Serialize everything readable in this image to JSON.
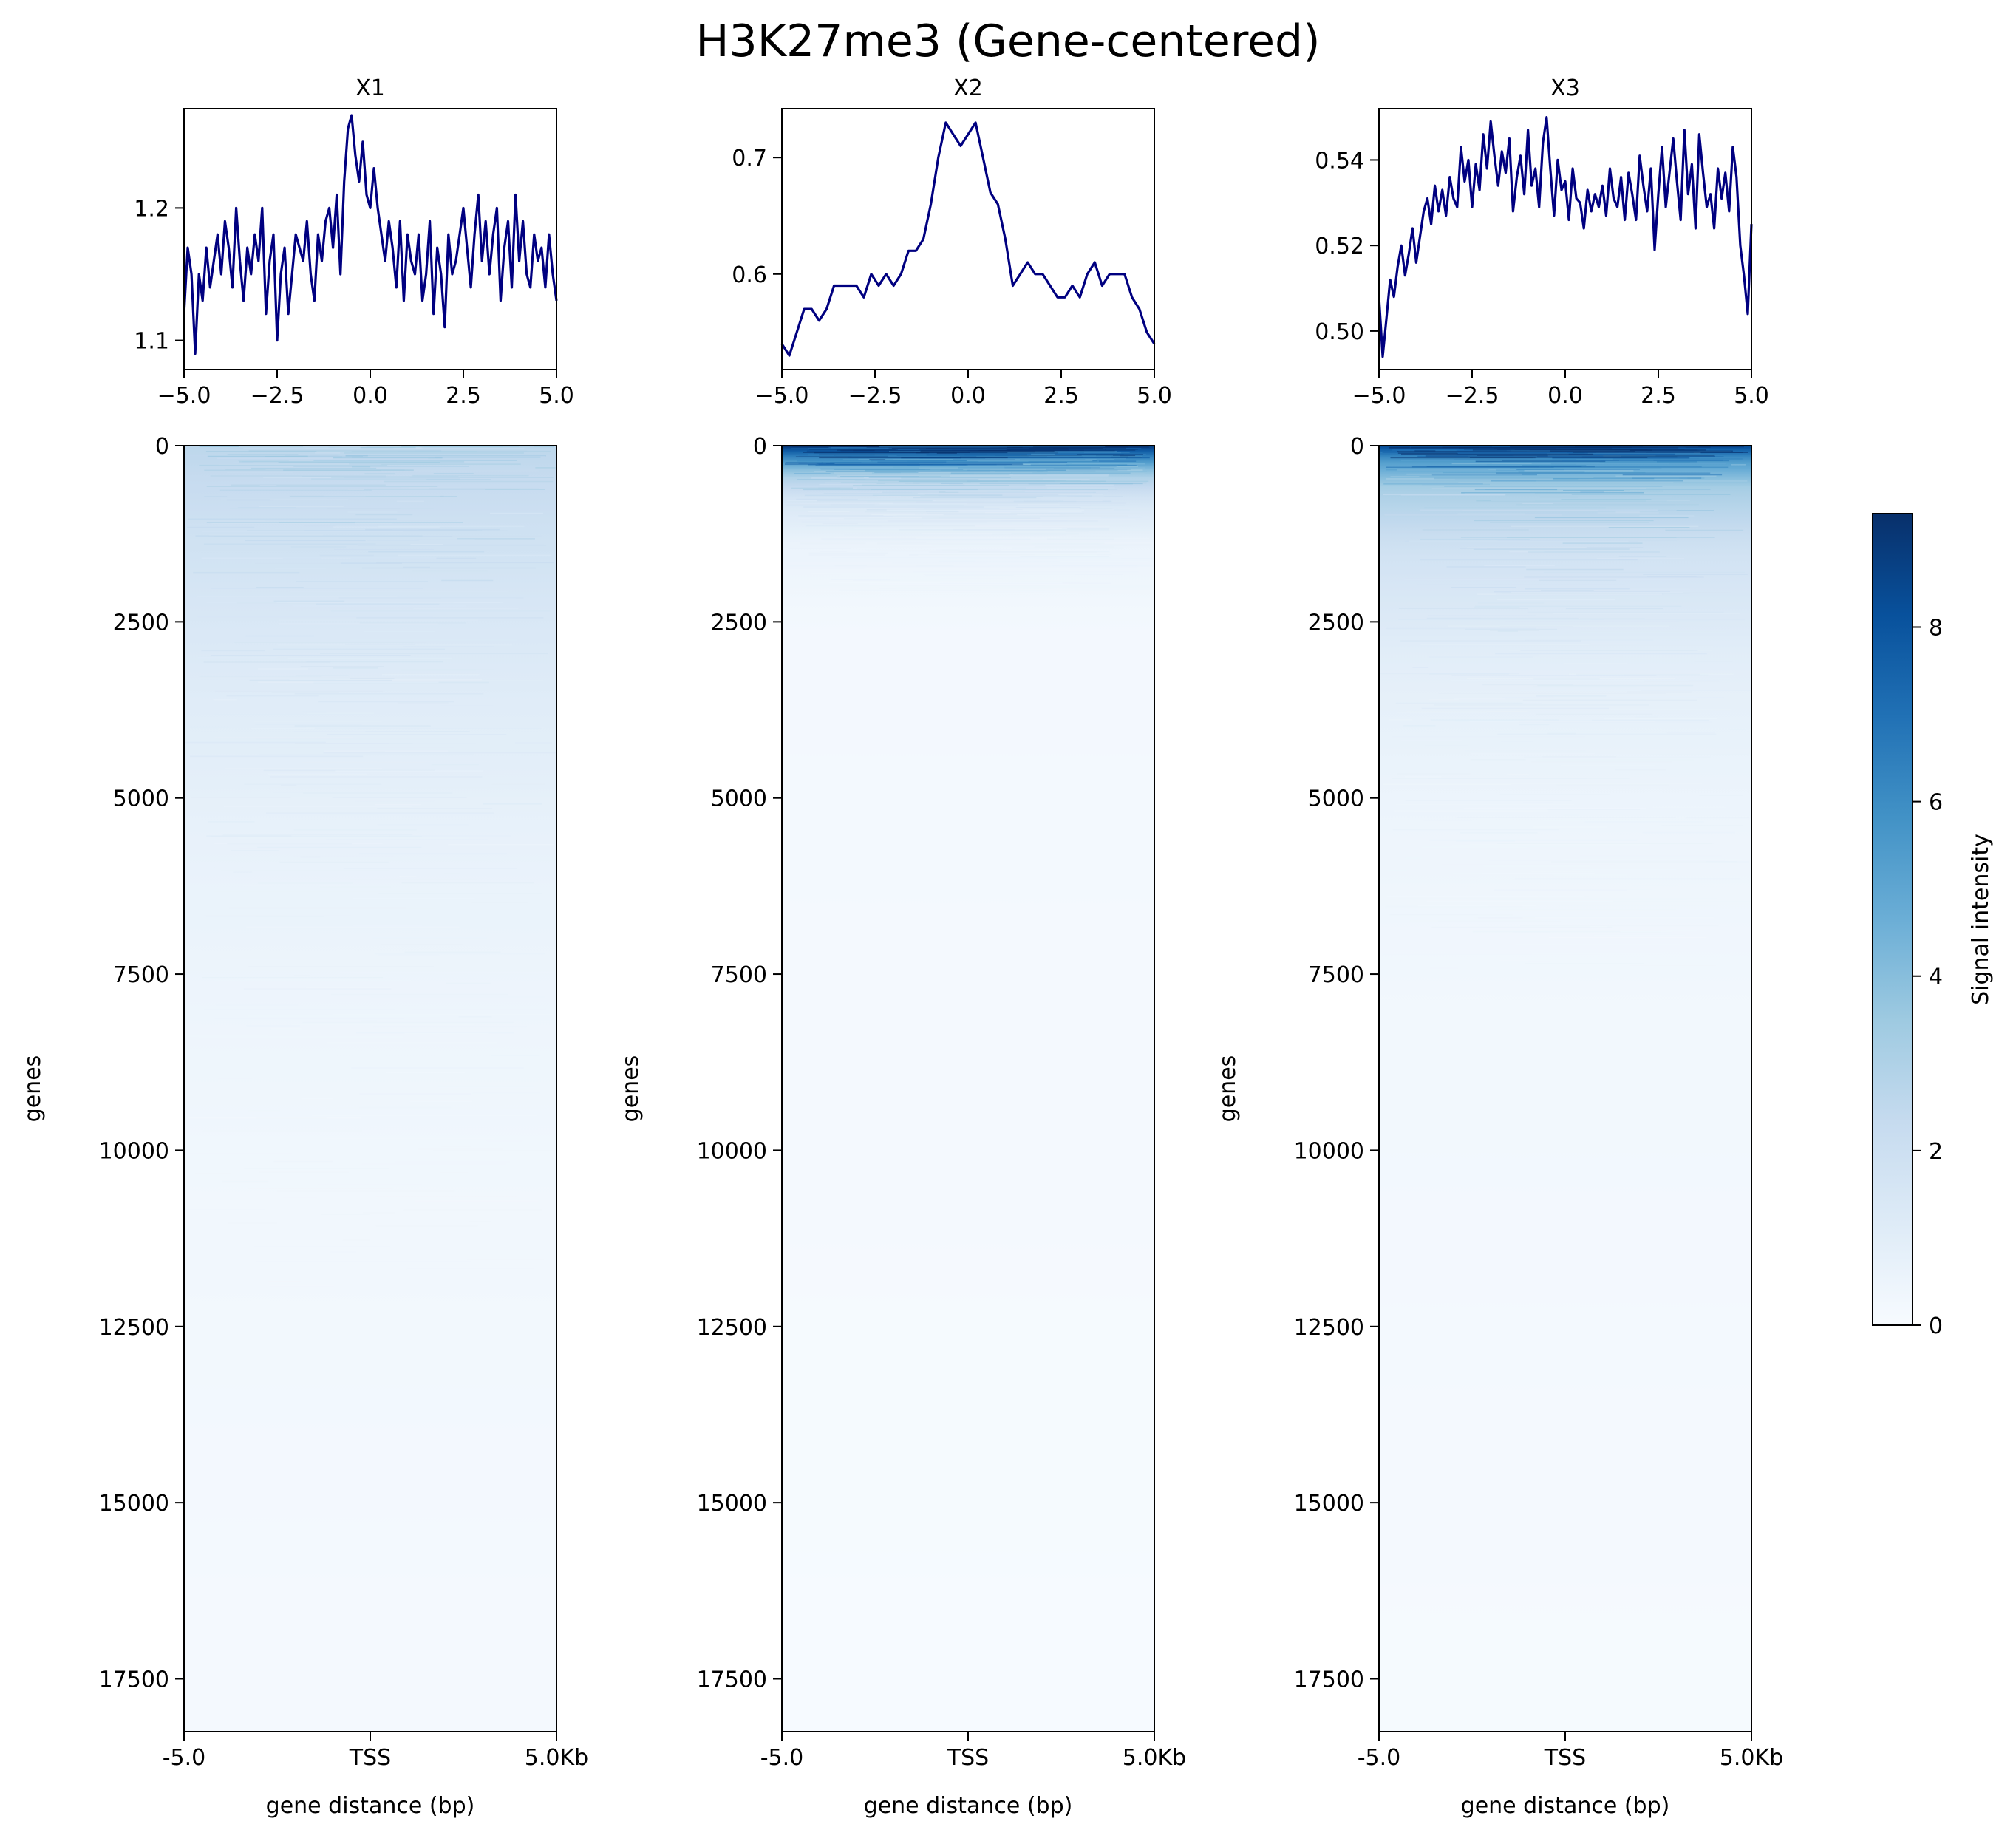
{
  "figure": {
    "title": "H3K27me3 (Gene-centered)"
  },
  "chart_data": [
    {
      "type": "line",
      "title": "X1",
      "xlabel": "",
      "ylabel": "",
      "xlim": [
        -5.0,
        5.0
      ],
      "ylim": [
        1.078,
        1.275
      ],
      "xticks": [
        "−5.0",
        "−2.5",
        "0.0",
        "2.5",
        "5.0"
      ],
      "yticks": [
        {
          "v": 1.1,
          "label": "1.1"
        },
        {
          "v": 1.2,
          "label": "1.2"
        }
      ],
      "color": "#000080",
      "x": [
        -5.0,
        -4.9,
        -4.8,
        -4.7,
        -4.6,
        -4.5,
        -4.4,
        -4.3,
        -4.2,
        -4.1,
        -4.0,
        -3.9,
        -3.8,
        -3.7,
        -3.6,
        -3.5,
        -3.4,
        -3.3,
        -3.2,
        -3.1,
        -3.0,
        -2.9,
        -2.8,
        -2.7,
        -2.6,
        -2.5,
        -2.4,
        -2.3,
        -2.2,
        -2.1,
        -2.0,
        -1.9,
        -1.8,
        -1.7,
        -1.6,
        -1.5,
        -1.4,
        -1.3,
        -1.2,
        -1.1,
        -1.0,
        -0.9,
        -0.8,
        -0.7,
        -0.6,
        -0.5,
        -0.4,
        -0.3,
        -0.2,
        -0.1,
        0.0,
        0.1,
        0.2,
        0.3,
        0.4,
        0.5,
        0.6,
        0.7,
        0.8,
        0.9,
        1.0,
        1.1,
        1.2,
        1.3,
        1.4,
        1.5,
        1.6,
        1.7,
        1.8,
        1.9,
        2.0,
        2.1,
        2.2,
        2.3,
        2.4,
        2.5,
        2.6,
        2.7,
        2.8,
        2.9,
        3.0,
        3.1,
        3.2,
        3.3,
        3.4,
        3.5,
        3.6,
        3.7,
        3.8,
        3.9,
        4.0,
        4.1,
        4.2,
        4.3,
        4.4,
        4.5,
        4.6,
        4.7,
        4.8,
        4.9,
        5.0
      ],
      "y": [
        1.12,
        1.17,
        1.15,
        1.09,
        1.15,
        1.13,
        1.17,
        1.14,
        1.16,
        1.18,
        1.15,
        1.19,
        1.17,
        1.14,
        1.2,
        1.16,
        1.13,
        1.17,
        1.15,
        1.18,
        1.16,
        1.2,
        1.12,
        1.16,
        1.18,
        1.1,
        1.15,
        1.17,
        1.12,
        1.15,
        1.18,
        1.17,
        1.16,
        1.19,
        1.15,
        1.13,
        1.18,
        1.16,
        1.19,
        1.2,
        1.17,
        1.21,
        1.15,
        1.22,
        1.26,
        1.27,
        1.24,
        1.22,
        1.25,
        1.21,
        1.2,
        1.23,
        1.2,
        1.18,
        1.16,
        1.19,
        1.17,
        1.14,
        1.19,
        1.13,
        1.18,
        1.16,
        1.15,
        1.18,
        1.13,
        1.15,
        1.19,
        1.12,
        1.17,
        1.15,
        1.11,
        1.18,
        1.15,
        1.16,
        1.18,
        1.2,
        1.17,
        1.14,
        1.18,
        1.21,
        1.16,
        1.19,
        1.15,
        1.18,
        1.2,
        1.13,
        1.17,
        1.19,
        1.14,
        1.21,
        1.16,
        1.19,
        1.15,
        1.14,
        1.18,
        1.16,
        1.17,
        1.14,
        1.18,
        1.15,
        1.13
      ]
    },
    {
      "type": "line",
      "title": "X2",
      "xlabel": "",
      "ylabel": "",
      "xlim": [
        -5.0,
        5.0
      ],
      "ylim": [
        0.518,
        0.742
      ],
      "xticks": [
        "−5.0",
        "−2.5",
        "0.0",
        "2.5",
        "5.0"
      ],
      "yticks": [
        {
          "v": 0.6,
          "label": "0.6"
        },
        {
          "v": 0.7,
          "label": "0.7"
        }
      ],
      "color": "#000080",
      "x": [
        -5.0,
        -4.8,
        -4.6,
        -4.4,
        -4.2,
        -4.0,
        -3.8,
        -3.6,
        -3.4,
        -3.2,
        -3.0,
        -2.8,
        -2.6,
        -2.4,
        -2.2,
        -2.0,
        -1.8,
        -1.6,
        -1.4,
        -1.2,
        -1.0,
        -0.8,
        -0.6,
        -0.4,
        -0.2,
        0.0,
        0.2,
        0.4,
        0.6,
        0.8,
        1.0,
        1.2,
        1.4,
        1.6,
        1.8,
        2.0,
        2.2,
        2.4,
        2.6,
        2.8,
        3.0,
        3.2,
        3.4,
        3.6,
        3.8,
        4.0,
        4.2,
        4.4,
        4.6,
        4.8,
        5.0
      ],
      "y": [
        0.54,
        0.53,
        0.55,
        0.57,
        0.57,
        0.56,
        0.57,
        0.59,
        0.59,
        0.59,
        0.59,
        0.58,
        0.6,
        0.59,
        0.6,
        0.59,
        0.6,
        0.62,
        0.62,
        0.63,
        0.66,
        0.7,
        0.73,
        0.72,
        0.71,
        0.72,
        0.73,
        0.7,
        0.67,
        0.66,
        0.63,
        0.59,
        0.6,
        0.61,
        0.6,
        0.6,
        0.59,
        0.58,
        0.58,
        0.59,
        0.58,
        0.6,
        0.61,
        0.59,
        0.6,
        0.6,
        0.6,
        0.58,
        0.57,
        0.55,
        0.54
      ]
    },
    {
      "type": "line",
      "title": "X3",
      "xlabel": "",
      "ylabel": "",
      "xlim": [
        -5.0,
        5.0
      ],
      "ylim": [
        0.491,
        0.552
      ],
      "xticks": [
        "−5.0",
        "−2.5",
        "0.0",
        "2.5",
        "5.0"
      ],
      "yticks": [
        {
          "v": 0.5,
          "label": "0.50"
        },
        {
          "v": 0.52,
          "label": "0.52"
        },
        {
          "v": 0.54,
          "label": "0.54"
        }
      ],
      "color": "#000080",
      "x": [
        -5.0,
        -4.9,
        -4.8,
        -4.7,
        -4.6,
        -4.5,
        -4.4,
        -4.3,
        -4.2,
        -4.1,
        -4.0,
        -3.9,
        -3.8,
        -3.7,
        -3.6,
        -3.5,
        -3.4,
        -3.3,
        -3.2,
        -3.1,
        -3.0,
        -2.9,
        -2.8,
        -2.7,
        -2.6,
        -2.5,
        -2.4,
        -2.3,
        -2.2,
        -2.1,
        -2.0,
        -1.9,
        -1.8,
        -1.7,
        -1.6,
        -1.5,
        -1.4,
        -1.3,
        -1.2,
        -1.1,
        -1.0,
        -0.9,
        -0.8,
        -0.7,
        -0.6,
        -0.5,
        -0.4,
        -0.3,
        -0.2,
        -0.1,
        0.0,
        0.1,
        0.2,
        0.3,
        0.4,
        0.5,
        0.6,
        0.7,
        0.8,
        0.9,
        1.0,
        1.1,
        1.2,
        1.3,
        1.4,
        1.5,
        1.6,
        1.7,
        1.8,
        1.9,
        2.0,
        2.1,
        2.2,
        2.3,
        2.4,
        2.5,
        2.6,
        2.7,
        2.8,
        2.9,
        3.0,
        3.1,
        3.2,
        3.3,
        3.4,
        3.5,
        3.6,
        3.7,
        3.8,
        3.9,
        4.0,
        4.1,
        4.2,
        4.3,
        4.4,
        4.5,
        4.6,
        4.7,
        4.8,
        4.9,
        5.0
      ],
      "y": [
        0.508,
        0.494,
        0.503,
        0.512,
        0.508,
        0.515,
        0.52,
        0.513,
        0.518,
        0.524,
        0.516,
        0.522,
        0.528,
        0.531,
        0.525,
        0.534,
        0.528,
        0.533,
        0.527,
        0.536,
        0.531,
        0.529,
        0.543,
        0.535,
        0.54,
        0.529,
        0.539,
        0.533,
        0.546,
        0.538,
        0.549,
        0.541,
        0.534,
        0.542,
        0.537,
        0.545,
        0.528,
        0.536,
        0.541,
        0.532,
        0.547,
        0.534,
        0.538,
        0.529,
        0.544,
        0.55,
        0.538,
        0.527,
        0.54,
        0.533,
        0.535,
        0.526,
        0.538,
        0.531,
        0.53,
        0.524,
        0.533,
        0.528,
        0.532,
        0.529,
        0.534,
        0.527,
        0.538,
        0.531,
        0.529,
        0.536,
        0.526,
        0.537,
        0.532,
        0.526,
        0.541,
        0.534,
        0.528,
        0.538,
        0.519,
        0.532,
        0.543,
        0.529,
        0.537,
        0.545,
        0.535,
        0.526,
        0.547,
        0.532,
        0.539,
        0.524,
        0.546,
        0.537,
        0.529,
        0.532,
        0.524,
        0.538,
        0.531,
        0.537,
        0.528,
        0.543,
        0.536,
        0.52,
        0.513,
        0.504,
        0.525
      ]
    },
    {
      "type": "heatmap",
      "panel": "X1",
      "xlabel": "gene distance (bp)",
      "ylabel": "genes",
      "xticks": [
        "-5.0",
        "TSS",
        "5.0Kb"
      ],
      "yticks": [
        "0",
        "2500",
        "5000",
        "7500",
        "10000",
        "12500",
        "15000",
        "17500"
      ],
      "n_genes": 18250,
      "colormap": "Blues",
      "depth_profile": [
        {
          "gene": 0,
          "signal": 2.6
        },
        {
          "gene": 1000,
          "signal": 2.0
        },
        {
          "gene": 2500,
          "signal": 1.4
        },
        {
          "gene": 4000,
          "signal": 1.0
        },
        {
          "gene": 6000,
          "signal": 0.65
        },
        {
          "gene": 8000,
          "signal": 0.45
        },
        {
          "gene": 10000,
          "signal": 0.32
        },
        {
          "gene": 14000,
          "signal": 0.2
        },
        {
          "gene": 18250,
          "signal": 0.12
        }
      ]
    },
    {
      "type": "heatmap",
      "panel": "X2",
      "xlabel": "gene distance (bp)",
      "ylabel": "genes",
      "xticks": [
        "-5.0",
        "TSS",
        "5.0Kb"
      ],
      "yticks": [
        "0",
        "2500",
        "5000",
        "7500",
        "10000",
        "12500",
        "15000",
        "17500"
      ],
      "n_genes": 18250,
      "colormap": "Blues",
      "depth_profile": [
        {
          "gene": 0,
          "signal": 9.0
        },
        {
          "gene": 150,
          "signal": 6.5
        },
        {
          "gene": 400,
          "signal": 3.2
        },
        {
          "gene": 800,
          "signal": 1.4
        },
        {
          "gene": 1400,
          "signal": 0.55
        },
        {
          "gene": 2500,
          "signal": 0.2
        },
        {
          "gene": 18250,
          "signal": 0.05
        }
      ]
    },
    {
      "type": "heatmap",
      "panel": "X3",
      "xlabel": "gene distance (bp)",
      "ylabel": "genes",
      "xticks": [
        "-5.0",
        "TSS",
        "5.0Kb"
      ],
      "yticks": [
        "0",
        "2500",
        "5000",
        "7500",
        "10000",
        "12500",
        "15000",
        "17500"
      ],
      "n_genes": 18250,
      "colormap": "Blues",
      "depth_profile": [
        {
          "gene": 0,
          "signal": 8.5
        },
        {
          "gene": 200,
          "signal": 5.5
        },
        {
          "gene": 600,
          "signal": 3.2
        },
        {
          "gene": 1500,
          "signal": 1.8
        },
        {
          "gene": 3000,
          "signal": 0.95
        },
        {
          "gene": 5000,
          "signal": 0.5
        },
        {
          "gene": 8000,
          "signal": 0.25
        },
        {
          "gene": 18250,
          "signal": 0.08
        }
      ]
    },
    {
      "type": "colorbar",
      "label": "Signal intensity",
      "colormap": "Blues",
      "vmin": 0,
      "vmax": 9.3,
      "ticks": [
        "0",
        "2",
        "4",
        "6",
        "8"
      ]
    }
  ]
}
